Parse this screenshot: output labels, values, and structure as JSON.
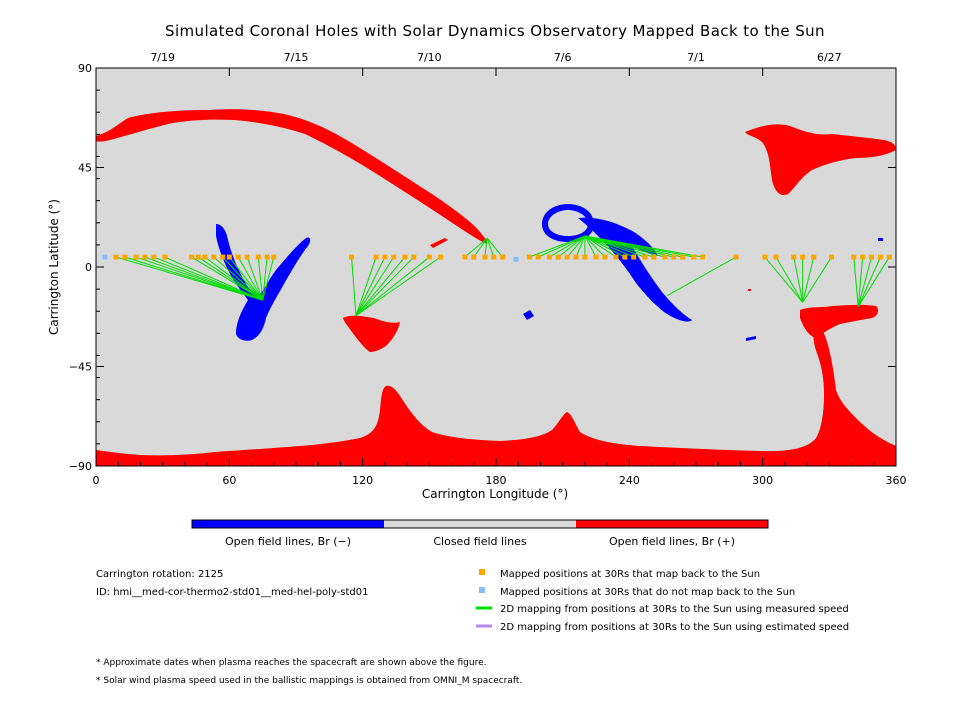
{
  "chart_data": {
    "type": "scatter",
    "title": "Simulated Coronal Holes with Solar Dynamics Observatory Mapped Back to the Sun",
    "xlabel": "Carrington Longitude (°)",
    "ylabel": "Carrington Latitude (°)",
    "xlim": [
      0,
      360
    ],
    "ylim": [
      -90,
      90
    ],
    "xticks": [
      0,
      60,
      120,
      180,
      240,
      300,
      360
    ],
    "yticks": [
      -90,
      -45,
      0,
      45,
      90
    ],
    "xtick_labels": [
      "0",
      "60",
      "120",
      "180",
      "240",
      "300",
      "360"
    ],
    "ytick_labels": [
      "−90",
      "−45",
      "0",
      "45",
      "90"
    ],
    "top_axis": {
      "dates": [
        {
          "label": "7/19",
          "lon": 30
        },
        {
          "label": "7/15",
          "lon": 90
        },
        {
          "label": "7/10",
          "lon": 150
        },
        {
          "label": "7/6",
          "lon": 210
        },
        {
          "label": "7/1",
          "lon": 270
        },
        {
          "label": "6/27",
          "lon": 330
        }
      ]
    },
    "colors": {
      "open_negative": "#0000ff",
      "closed": "#d9d9d9",
      "open_positive": "#ff0000",
      "mapped": "#ffa500",
      "unmapped": "#88bbff",
      "measured_line": "#00dd00",
      "estimated_line": "#bb88ee"
    },
    "mapped_points": [
      {
        "lon": 9,
        "lat": 4.5,
        "foot_lon": 75,
        "foot_lat": -15
      },
      {
        "lon": 13,
        "lat": 4.5,
        "foot_lon": 75,
        "foot_lat": -15
      },
      {
        "lon": 18,
        "lat": 4.5,
        "foot_lon": 75,
        "foot_lat": -15
      },
      {
        "lon": 22,
        "lat": 4.5,
        "foot_lon": 75,
        "foot_lat": -15
      },
      {
        "lon": 26,
        "lat": 4.5,
        "foot_lon": 75,
        "foot_lat": -15
      },
      {
        "lon": 31,
        "lat": 4.5,
        "foot_lon": 75,
        "foot_lat": -15
      },
      {
        "lon": 43,
        "lat": 4.5,
        "foot_lon": 75,
        "foot_lat": -15
      },
      {
        "lon": 46,
        "lat": 4.5,
        "foot_lon": 75,
        "foot_lat": -15
      },
      {
        "lon": 49,
        "lat": 4.5,
        "foot_lon": 75,
        "foot_lat": -15
      },
      {
        "lon": 53,
        "lat": 4.5,
        "foot_lon": 75,
        "foot_lat": -15
      },
      {
        "lon": 57,
        "lat": 4.5,
        "foot_lon": 75,
        "foot_lat": -15
      },
      {
        "lon": 60,
        "lat": 4.5,
        "foot_lon": 75,
        "foot_lat": -15
      },
      {
        "lon": 64,
        "lat": 4.5,
        "foot_lon": 75,
        "foot_lat": -15
      },
      {
        "lon": 68,
        "lat": 4.5,
        "foot_lon": 75,
        "foot_lat": -15
      },
      {
        "lon": 73,
        "lat": 4.5,
        "foot_lon": 75,
        "foot_lat": -15
      },
      {
        "lon": 77,
        "lat": 4.5,
        "foot_lon": 75,
        "foot_lat": -15
      },
      {
        "lon": 80,
        "lat": 4.5,
        "foot_lon": 75,
        "foot_lat": -15
      },
      {
        "lon": 115,
        "lat": 4.5,
        "foot_lon": 117,
        "foot_lat": -22
      },
      {
        "lon": 126,
        "lat": 4.5,
        "foot_lon": 117,
        "foot_lat": -22
      },
      {
        "lon": 130,
        "lat": 4.5,
        "foot_lon": 117,
        "foot_lat": -22
      },
      {
        "lon": 134,
        "lat": 4.5,
        "foot_lon": 117,
        "foot_lat": -22
      },
      {
        "lon": 139,
        "lat": 4.5,
        "foot_lon": 117,
        "foot_lat": -22
      },
      {
        "lon": 143,
        "lat": 4.5,
        "foot_lon": 117,
        "foot_lat": -22
      },
      {
        "lon": 150,
        "lat": 4.5,
        "foot_lon": 117,
        "foot_lat": -22
      },
      {
        "lon": 155,
        "lat": 4.5,
        "foot_lon": 117,
        "foot_lat": -22
      },
      {
        "lon": 166,
        "lat": 4.5,
        "foot_lon": 176,
        "foot_lat": 13
      },
      {
        "lon": 170,
        "lat": 4.5,
        "foot_lon": 176,
        "foot_lat": 13
      },
      {
        "lon": 175,
        "lat": 4.5,
        "foot_lon": 176,
        "foot_lat": 13
      },
      {
        "lon": 179,
        "lat": 4.5,
        "foot_lon": 176,
        "foot_lat": 13
      },
      {
        "lon": 183,
        "lat": 4.5,
        "foot_lon": 176,
        "foot_lat": 13
      },
      {
        "lon": 195,
        "lat": 4.5,
        "foot_lon": 220,
        "foot_lat": 14
      },
      {
        "lon": 199,
        "lat": 4.5,
        "foot_lon": 220,
        "foot_lat": 14
      },
      {
        "lon": 204,
        "lat": 4.5,
        "foot_lon": 220,
        "foot_lat": 14
      },
      {
        "lon": 208,
        "lat": 4.5,
        "foot_lon": 220,
        "foot_lat": 14
      },
      {
        "lon": 212,
        "lat": 4.5,
        "foot_lon": 220,
        "foot_lat": 14
      },
      {
        "lon": 216,
        "lat": 4.5,
        "foot_lon": 220,
        "foot_lat": 14
      },
      {
        "lon": 220,
        "lat": 4.5,
        "foot_lon": 220,
        "foot_lat": 14
      },
      {
        "lon": 225,
        "lat": 4.5,
        "foot_lon": 220,
        "foot_lat": 14
      },
      {
        "lon": 229,
        "lat": 4.5,
        "foot_lon": 220,
        "foot_lat": 14
      },
      {
        "lon": 234,
        "lat": 4.5,
        "foot_lon": 220,
        "foot_lat": 14
      },
      {
        "lon": 238,
        "lat": 4.5,
        "foot_lon": 220,
        "foot_lat": 14
      },
      {
        "lon": 242,
        "lat": 4.5,
        "foot_lon": 220,
        "foot_lat": 14
      },
      {
        "lon": 247,
        "lat": 4.5,
        "foot_lon": 220,
        "foot_lat": 14
      },
      {
        "lon": 251,
        "lat": 4.5,
        "foot_lon": 220,
        "foot_lat": 14
      },
      {
        "lon": 256,
        "lat": 4.5,
        "foot_lon": 220,
        "foot_lat": 14
      },
      {
        "lon": 260,
        "lat": 4.5,
        "foot_lon": 220,
        "foot_lat": 14
      },
      {
        "lon": 264,
        "lat": 4.5,
        "foot_lon": 220,
        "foot_lat": 14
      },
      {
        "lon": 269,
        "lat": 4.5,
        "foot_lon": 220,
        "foot_lat": 14
      },
      {
        "lon": 273,
        "lat": 4.5,
        "foot_lon": 220,
        "foot_lat": 14
      },
      {
        "lon": 288,
        "lat": 4.5,
        "foot_lon": 257,
        "foot_lat": -13
      },
      {
        "lon": 301,
        "lat": 4.5,
        "foot_lon": 318,
        "foot_lat": -16
      },
      {
        "lon": 306,
        "lat": 4.5,
        "foot_lon": 318,
        "foot_lat": -16
      },
      {
        "lon": 314,
        "lat": 4.5,
        "foot_lon": 318,
        "foot_lat": -16
      },
      {
        "lon": 318,
        "lat": 4.5,
        "foot_lon": 318,
        "foot_lat": -16
      },
      {
        "lon": 323,
        "lat": 4.5,
        "foot_lon": 318,
        "foot_lat": -16
      },
      {
        "lon": 331,
        "lat": 4.5,
        "foot_lon": 318,
        "foot_lat": -16
      },
      {
        "lon": 341,
        "lat": 4.5,
        "foot_lon": 343,
        "foot_lat": -18
      },
      {
        "lon": 345,
        "lat": 4.5,
        "foot_lon": 343,
        "foot_lat": -18
      },
      {
        "lon": 349,
        "lat": 4.5,
        "foot_lon": 343,
        "foot_lat": -18
      },
      {
        "lon": 353,
        "lat": 4.5,
        "foot_lon": 343,
        "foot_lat": -18
      },
      {
        "lon": 357,
        "lat": 4.5,
        "foot_lon": 343,
        "foot_lat": -18
      }
    ],
    "unmapped_points": [
      {
        "lon": 4,
        "lat": 4.5
      },
      {
        "lon": 189,
        "lat": 3.5
      }
    ],
    "colorbar": {
      "labels": [
        "Open field lines, Br (−)",
        "Closed field lines",
        "Open field lines, Br (+)"
      ]
    },
    "legend": [
      {
        "marker": "square",
        "color": "#ffa500",
        "label": "Mapped positions at 30Rs that map back to the Sun"
      },
      {
        "marker": "square",
        "color": "#88bbff",
        "label": "Mapped positions at 30Rs that do not map back to the Sun"
      },
      {
        "marker": "line",
        "color": "#00dd00",
        "label": "2D mapping from positions at 30Rs to the Sun using measured speed"
      },
      {
        "marker": "line",
        "color": "#bb88ee",
        "label": "2D mapping from positions at 30Rs to the Sun using estimated speed"
      }
    ],
    "info": {
      "rotation": "Carrington rotation: 2125",
      "id": "ID: hmi__med-cor-thermo2-std01__med-hel-poly-std01"
    },
    "notes": [
      "* Approximate dates when plasma reaches the spacecraft are shown above the figure.",
      "* Solar wind plasma speed used in the ballistic mappings is obtained from OMNI_M spacecraft."
    ]
  }
}
